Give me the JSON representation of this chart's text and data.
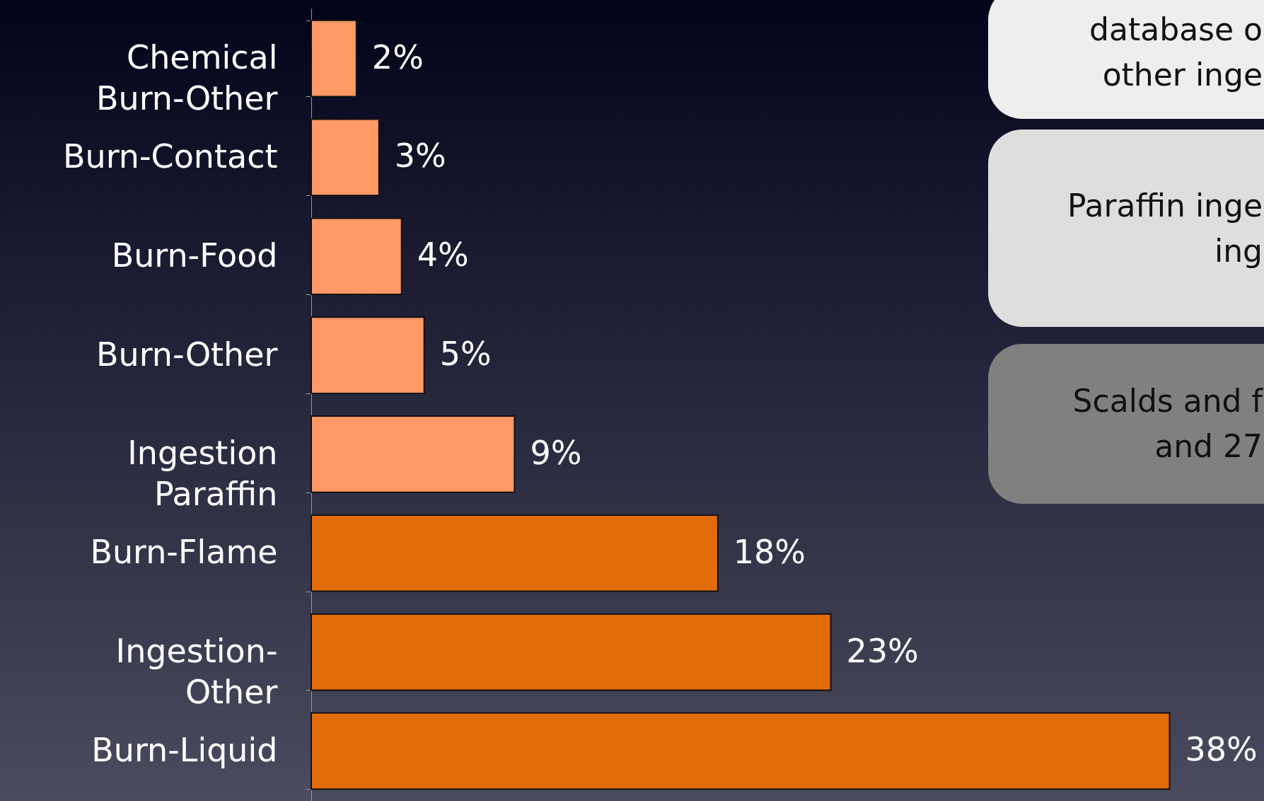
{
  "chart_data": {
    "type": "bar",
    "orientation": "horizontal",
    "grid": false,
    "categories": [
      "Chemical\nBurn-Other",
      "Burn-Contact",
      "Burn-Food",
      "Burn-Other",
      "Ingestion\nParaffin",
      "Burn-Flame",
      "Ingestion-\nOther",
      "Burn-Liquid"
    ],
    "values": [
      2,
      3,
      4,
      5,
      9,
      18,
      23,
      38
    ],
    "colors": [
      "#ff9966",
      "#ff9966",
      "#ff9966",
      "#ff9966",
      "#ff9966",
      "#e36c0a",
      "#e36c0a",
      "#e36c0a"
    ],
    "value_labels": [
      "2%",
      "3%",
      "4%",
      "5%",
      "9%",
      "18%",
      "23%",
      "38%"
    ],
    "annotations": [
      "database o\nother inge",
      "Paraffin inge\ning",
      "Scalds and f\nand 27"
    ]
  }
}
